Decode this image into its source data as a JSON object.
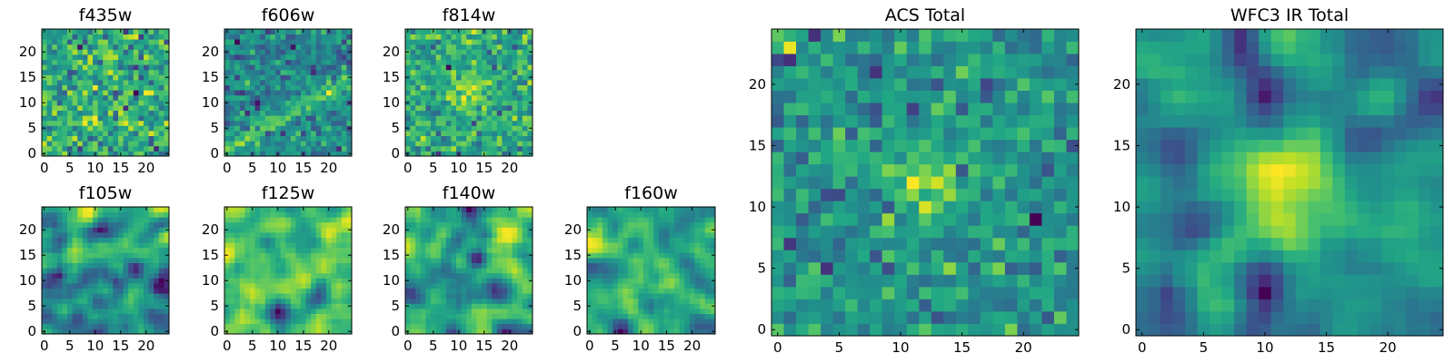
{
  "chart_data": [
    {
      "type": "heatmap",
      "title": "f435w",
      "colormap": "viridis",
      "grid_size": [
        25,
        25
      ],
      "xlim": [
        -0.5,
        24.5
      ],
      "ylim": [
        -0.5,
        24.5
      ],
      "xticks": [
        0,
        5,
        10,
        15,
        20
      ],
      "yticks": [
        0,
        5,
        10,
        15,
        20
      ],
      "x_tick_labels": [
        "0",
        "5",
        "10",
        "15",
        "20"
      ],
      "y_tick_labels": [
        "0",
        "5",
        "10",
        "15",
        "20"
      ],
      "pattern": "noise",
      "grid": false
    },
    {
      "type": "heatmap",
      "title": "f606w",
      "colormap": "viridis",
      "grid_size": [
        25,
        25
      ],
      "xlim": [
        -0.5,
        24.5
      ],
      "ylim": [
        -0.5,
        24.5
      ],
      "xticks": [
        0,
        5,
        10,
        15,
        20
      ],
      "yticks": [
        0,
        5,
        10,
        15,
        20
      ],
      "x_tick_labels": [
        "0",
        "5",
        "10",
        "15",
        "20"
      ],
      "y_tick_labels": [
        "0",
        "5",
        "10",
        "15",
        "20"
      ],
      "pattern": "diagonal-streak",
      "grid": false
    },
    {
      "type": "heatmap",
      "title": "f814w",
      "colormap": "viridis",
      "grid_size": [
        25,
        25
      ],
      "xlim": [
        -0.5,
        24.5
      ],
      "ylim": [
        -0.5,
        24.5
      ],
      "xticks": [
        0,
        5,
        10,
        15,
        20
      ],
      "yticks": [
        0,
        5,
        10,
        15,
        20
      ],
      "x_tick_labels": [
        "0",
        "5",
        "10",
        "15",
        "20"
      ],
      "y_tick_labels": [
        "0",
        "5",
        "10",
        "15",
        "20"
      ],
      "pattern": "central-blob",
      "grid": false
    },
    {
      "type": "heatmap",
      "title": "f105w",
      "colormap": "viridis",
      "grid_size": [
        25,
        25
      ],
      "xlim": [
        -0.5,
        24.5
      ],
      "ylim": [
        -0.5,
        24.5
      ],
      "xticks": [
        0,
        5,
        10,
        15,
        20
      ],
      "yticks": [
        0,
        5,
        10,
        15,
        20
      ],
      "x_tick_labels": [
        "0",
        "5",
        "10",
        "15",
        "20"
      ],
      "y_tick_labels": [
        "0",
        "5",
        "10",
        "15",
        "20"
      ],
      "pattern": "smooth",
      "grid": false
    },
    {
      "type": "heatmap",
      "title": "f125w",
      "colormap": "viridis",
      "grid_size": [
        25,
        25
      ],
      "xlim": [
        -0.5,
        24.5
      ],
      "ylim": [
        -0.5,
        24.5
      ],
      "xticks": [
        0,
        5,
        10,
        15,
        20
      ],
      "yticks": [
        0,
        5,
        10,
        15,
        20
      ],
      "x_tick_labels": [
        "0",
        "5",
        "10",
        "15",
        "20"
      ],
      "y_tick_labels": [
        "0",
        "5",
        "10",
        "15",
        "20"
      ],
      "pattern": "smooth",
      "grid": false
    },
    {
      "type": "heatmap",
      "title": "f140w",
      "colormap": "viridis",
      "grid_size": [
        25,
        25
      ],
      "xlim": [
        -0.5,
        24.5
      ],
      "ylim": [
        -0.5,
        24.5
      ],
      "xticks": [
        0,
        5,
        10,
        15,
        20
      ],
      "yticks": [
        0,
        5,
        10,
        15,
        20
      ],
      "x_tick_labels": [
        "0",
        "5",
        "10",
        "15",
        "20"
      ],
      "y_tick_labels": [
        "0",
        "5",
        "10",
        "15",
        "20"
      ],
      "pattern": "smooth",
      "grid": false
    },
    {
      "type": "heatmap",
      "title": "f160w",
      "colormap": "viridis",
      "grid_size": [
        25,
        25
      ],
      "xlim": [
        -0.5,
        24.5
      ],
      "ylim": [
        -0.5,
        24.5
      ],
      "xticks": [
        0,
        5,
        10,
        15,
        20
      ],
      "yticks": [
        0,
        5,
        10,
        15,
        20
      ],
      "x_tick_labels": [
        "0",
        "5",
        "10",
        "15",
        "20"
      ],
      "y_tick_labels": [
        "0",
        "5",
        "10",
        "15",
        "20"
      ],
      "pattern": "smooth",
      "grid": false
    },
    {
      "type": "heatmap",
      "title": "ACS Total",
      "colormap": "viridis",
      "grid_size": [
        25,
        25
      ],
      "xlim": [
        -0.5,
        24.5
      ],
      "ylim": [
        -0.5,
        24.5
      ],
      "xticks": [
        0,
        5,
        10,
        15,
        20
      ],
      "yticks": [
        0,
        5,
        10,
        15,
        20
      ],
      "x_tick_labels": [
        "0",
        "5",
        "10",
        "15",
        "20"
      ],
      "y_tick_labels": [
        "0",
        "5",
        "10",
        "15",
        "20"
      ],
      "pattern": "central-blob",
      "grid": false
    },
    {
      "type": "heatmap",
      "title": "WFC3 IR Total",
      "colormap": "viridis",
      "grid_size": [
        25,
        25
      ],
      "xlim": [
        -0.5,
        24.5
      ],
      "ylim": [
        -0.5,
        24.5
      ],
      "xticks": [
        0,
        5,
        10,
        15,
        20
      ],
      "yticks": [
        0,
        5,
        10,
        15,
        20
      ],
      "x_tick_labels": [
        "0",
        "5",
        "10",
        "15",
        "20"
      ],
      "y_tick_labels": [
        "0",
        "5",
        "10",
        "15",
        "20"
      ],
      "pattern": "smooth-blob",
      "grid": false
    }
  ]
}
